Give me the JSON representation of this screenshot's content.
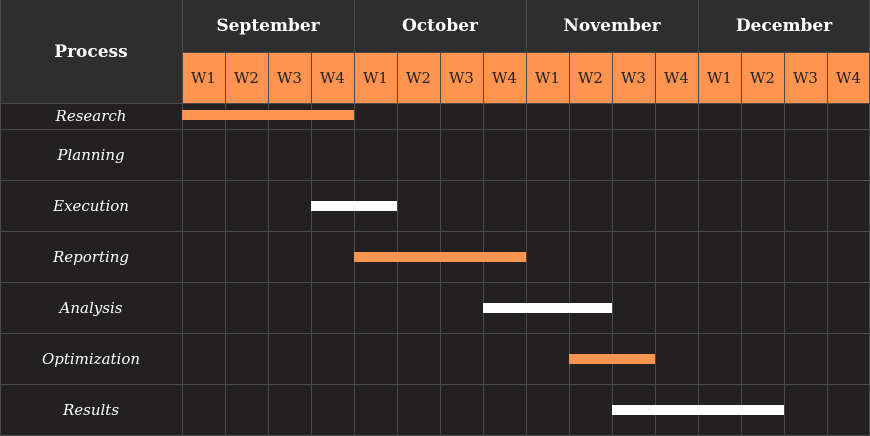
{
  "header": {
    "process_label": "Process",
    "months": [
      "September",
      "October",
      "November",
      "December"
    ],
    "weeks": [
      "W1",
      "W2",
      "W3",
      "W4",
      "W1",
      "W2",
      "W3",
      "W4",
      "W1",
      "W2",
      "W3",
      "W4",
      "W1",
      "W2",
      "W3",
      "W4"
    ]
  },
  "colors": {
    "orange": "#ff9450",
    "white": "#ffffff",
    "dark": "#222021",
    "header_dark": "#2e2e2e",
    "grid": "#4a4a4a"
  },
  "chart_data": {
    "type": "gantt",
    "tasks": [
      {
        "name": "Research",
        "start_week": 0,
        "end_week": 4,
        "color": "#ff9450"
      },
      {
        "name": "Planning",
        "start_week": null,
        "end_week": null,
        "color": null
      },
      {
        "name": "Execution",
        "start_week": 3,
        "end_week": 5,
        "color": "#ffffff"
      },
      {
        "name": "Reporting",
        "start_week": 4,
        "end_week": 8,
        "color": "#ff9450"
      },
      {
        "name": "Analysis",
        "start_week": 7,
        "end_week": 10,
        "color": "#ffffff"
      },
      {
        "name": "Optimization",
        "start_week": 9,
        "end_week": 11,
        "color": "#ff9450"
      },
      {
        "name": "Results",
        "start_week": 10,
        "end_week": 14,
        "color": "#ffffff"
      }
    ]
  }
}
